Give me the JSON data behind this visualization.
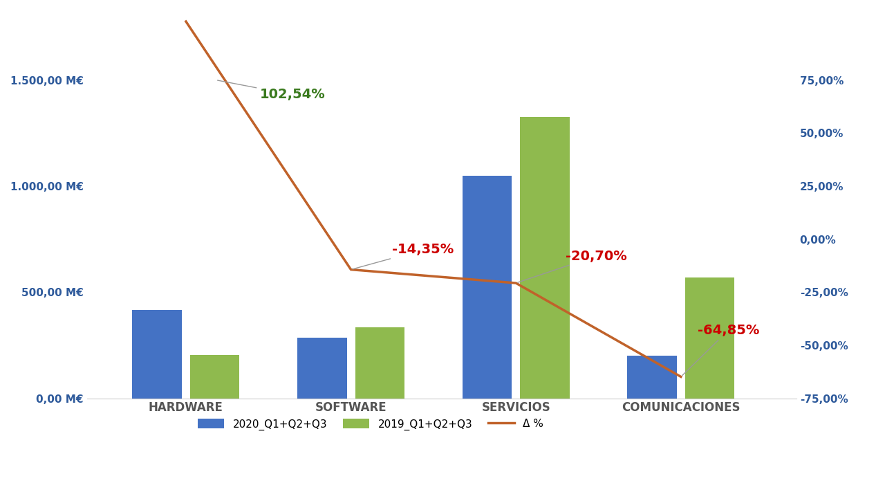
{
  "categories": [
    "HARDWARE",
    "SOFTWARE",
    "SERVICIOS",
    "COMUNICACIONES"
  ],
  "values_2020": [
    415,
    285,
    1050,
    200
  ],
  "values_2019": [
    205,
    333,
    1325,
    568
  ],
  "delta_pct": [
    102.54,
    -14.35,
    -20.7,
    -64.85
  ],
  "delta_labels": [
    "102,54%",
    "-14,35%",
    "-20,70%",
    "-64,85%"
  ],
  "delta_label_colors": [
    "#3a7a1e",
    "#cc0000",
    "#cc0000",
    "#cc0000"
  ],
  "bar_color_2020": "#4472c4",
  "bar_color_2019": "#8fba4e",
  "line_color": "#c0622a",
  "ylim_left": [
    0,
    1500
  ],
  "ylim_right": [
    -75,
    75
  ],
  "yticks_left": [
    0,
    500,
    1000,
    1500
  ],
  "ytick_labels_left": [
    "0,00 M€",
    "500,00 M€",
    "1.000,00 M€",
    "1.500,00 M€"
  ],
  "yticks_right": [
    -75,
    -50,
    -25,
    0,
    25,
    50,
    75
  ],
  "ytick_labels_right": [
    "-75,00%",
    "-50,00%",
    "-25,00%",
    "0,00%",
    "25,00%",
    "50,00%",
    "75,00%"
  ],
  "legend_2020": "2020_Q1+Q2+Q3",
  "legend_2019": "2019_Q1+Q2+Q3",
  "legend_delta": "Δ %",
  "axis_color": "#2e5a9b",
  "background_color": "#ffffff",
  "annotation_font_size": 14,
  "tick_label_font_size": 11,
  "legend_font_size": 11
}
